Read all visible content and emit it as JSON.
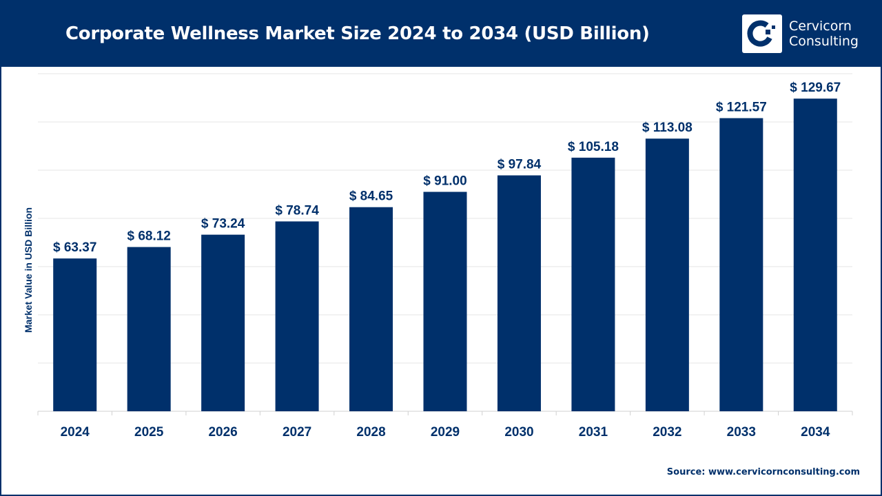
{
  "header": {
    "title": "Corporate Wellness Market Size 2024 to 2034 (USD Billion)",
    "logo_line1": "Cervicorn",
    "logo_line2": "Consulting"
  },
  "source": "Source: www.cervicornconsulting.com",
  "colors": {
    "brand": "#00306b",
    "bar": "#00306b",
    "grid": "#e5e5e5"
  },
  "chart_data": {
    "type": "bar",
    "title": "Corporate Wellness Market Size 2024 to 2034 (USD Billion)",
    "xlabel": "",
    "ylabel": "Market Value in USD Billion",
    "categories": [
      "2024",
      "2025",
      "2026",
      "2027",
      "2028",
      "2029",
      "2030",
      "2031",
      "2032",
      "2033",
      "2034"
    ],
    "values": [
      63.37,
      68.12,
      73.24,
      78.74,
      84.65,
      91.0,
      97.84,
      105.18,
      113.08,
      121.57,
      129.67
    ],
    "labels": [
      "$ 63.37",
      "$ 68.12",
      "$ 73.24",
      "$ 78.74",
      "$ 84.65",
      "$ 91.00",
      "$ 97.84",
      "$ 105.18",
      "$ 113.08",
      "$ 121.57",
      "$ 129.67"
    ],
    "ylim": [
      0,
      140
    ],
    "ytick_step": 20,
    "grid": true,
    "y_tick_labels_shown": false
  }
}
